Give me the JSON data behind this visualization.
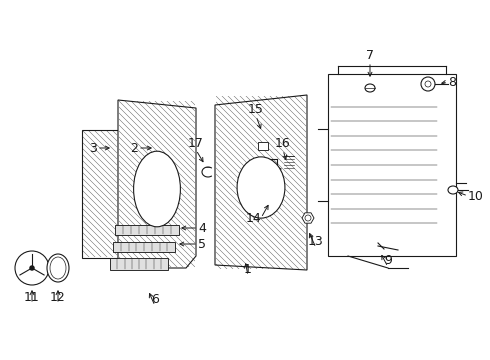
{
  "bg_color": "#ffffff",
  "lc": "#1a1a1a",
  "lw_main": 0.8,
  "lw_thin": 0.4,
  "fs": 9,
  "hatch_color": "#555555",
  "labels": {
    "1": [
      242,
      278,
      248,
      258,
      "center",
      "top"
    ],
    "2": [
      142,
      148,
      162,
      152,
      "right",
      "center"
    ],
    "3": [
      98,
      148,
      113,
      148,
      "right",
      "center"
    ],
    "4": [
      195,
      228,
      175,
      228,
      "left",
      "center"
    ],
    "5": [
      195,
      244,
      175,
      244,
      "left",
      "center"
    ],
    "6": [
      155,
      305,
      148,
      288,
      "center",
      "bottom"
    ],
    "7": [
      368,
      63,
      368,
      78,
      "center",
      "bottom"
    ],
    "8": [
      442,
      80,
      426,
      84,
      "left",
      "center"
    ],
    "9": [
      390,
      265,
      382,
      248,
      "center",
      "bottom"
    ],
    "10": [
      468,
      198,
      454,
      194,
      "left",
      "center"
    ],
    "11": [
      32,
      302,
      32,
      286,
      "center",
      "bottom"
    ],
    "12": [
      58,
      302,
      58,
      286,
      "center",
      "bottom"
    ],
    "13": [
      315,
      245,
      308,
      228,
      "center",
      "bottom"
    ],
    "14": [
      262,
      218,
      270,
      202,
      "right",
      "center"
    ],
    "15": [
      256,
      118,
      262,
      134,
      "center",
      "bottom"
    ],
    "16": [
      283,
      152,
      282,
      165,
      "center",
      "bottom"
    ],
    "17": [
      196,
      152,
      202,
      166,
      "center",
      "bottom"
    ]
  }
}
